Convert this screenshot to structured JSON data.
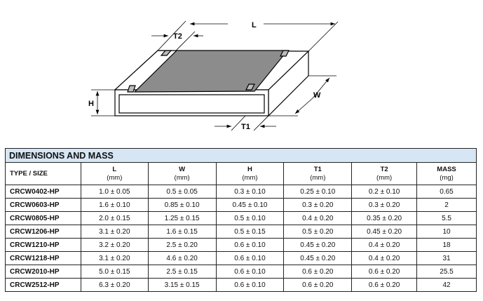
{
  "diagram": {
    "labels": {
      "L": "L",
      "W": "W",
      "H": "H",
      "T1": "T1",
      "T2": "T2"
    }
  },
  "table": {
    "title": "DIMENSIONS AND MASS",
    "headers": [
      {
        "name": "TYPE / SIZE",
        "unit": ""
      },
      {
        "name": "L",
        "unit": "(mm)"
      },
      {
        "name": "W",
        "unit": "(mm)"
      },
      {
        "name": "H",
        "unit": "(mm)"
      },
      {
        "name": "T1",
        "unit": "(mm)"
      },
      {
        "name": "T2",
        "unit": "(mm)"
      },
      {
        "name": "MASS",
        "unit": "(mg)"
      }
    ],
    "rows": [
      [
        "CRCW0402-HP",
        "1.0 ± 0.05",
        "0.5 ± 0.05",
        "0.3 ± 0.10",
        "0.25 ± 0.10",
        "0.2 ± 0.10",
        "0.65"
      ],
      [
        "CRCW0603-HP",
        "1.6 ± 0.10",
        "0.85 ± 0.10",
        "0.45 ± 0.10",
        "0.3 ± 0.20",
        "0.3 ± 0.20",
        "2"
      ],
      [
        "CRCW0805-HP",
        "2.0 ± 0.15",
        "1.25 ± 0.15",
        "0.5 ± 0.10",
        "0.4 ± 0.20",
        "0.35 ± 0.20",
        "5.5"
      ],
      [
        "CRCW1206-HP",
        "3.1 ± 0.20",
        "1.6 ± 0.15",
        "0.5 ± 0.15",
        "0.5 ± 0.20",
        "0.45 ± 0.20",
        "10"
      ],
      [
        "CRCW1210-HP",
        "3.2 ± 0.20",
        "2.5 ± 0.20",
        "0.6 ± 0.10",
        "0.45 ± 0.20",
        "0.4 ± 0.20",
        "18"
      ],
      [
        "CRCW1218-HP",
        "3.1 ± 0.20",
        "4.6 ± 0.20",
        "0.6 ± 0.10",
        "0.45 ± 0.20",
        "0.4 ± 0.20",
        "31"
      ],
      [
        "CRCW2010-HP",
        "5.0 ± 0.15",
        "2.5 ± 0.15",
        "0.6 ± 0.10",
        "0.6 ± 0.20",
        "0.6 ± 0.20",
        "25.5"
      ],
      [
        "CRCW2512-HP",
        "6.3 ± 0.20",
        "3.15 ± 0.15",
        "0.6 ± 0.10",
        "0.6 ± 0.20",
        "0.6 ± 0.20",
        "42"
      ]
    ],
    "header_color": "#d6e6f4"
  }
}
